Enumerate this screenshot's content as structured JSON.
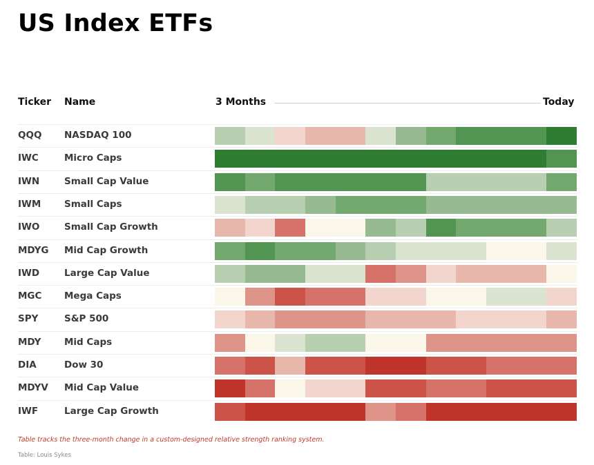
{
  "title": "US Index ETFs",
  "header": {
    "ticker": "Ticker",
    "name": "Name",
    "start": "3 Months",
    "end": "Today"
  },
  "caption": "Table tracks the three-month change in a custom-designed relative strength ranking system.",
  "source": "Table: Louis Sykes",
  "palette": {
    "g5": "#2e7d32",
    "g4": "#529452",
    "g3": "#73a96f",
    "g2": "#97ba92",
    "g1": "#b8d0b1",
    "g0": "#dbe3d1",
    "n": "#faf6ea",
    "r0": "#f2d6cd",
    "r1": "#e8b7ac",
    "r2": "#df948a",
    "r3": "#d5736a",
    "r4": "#cb5347",
    "r5": "#c0352b"
  },
  "chart_data": {
    "type": "heatmap",
    "columns": 12,
    "rows": [
      {
        "ticker": "QQQ",
        "name": "NASDAQ 100",
        "cells": [
          "g1",
          "g0",
          "r0",
          "r1",
          "r1",
          "g0",
          "g2",
          "g3",
          "g4",
          "g4",
          "g4",
          "g5"
        ]
      },
      {
        "ticker": "IWC",
        "name": "Micro Caps",
        "cells": [
          "g5",
          "g5",
          "g5",
          "g5",
          "g5",
          "g5",
          "g5",
          "g5",
          "g5",
          "g5",
          "g5",
          "g4"
        ]
      },
      {
        "ticker": "IWN",
        "name": "Small Cap Value",
        "cells": [
          "g4",
          "g3",
          "g4",
          "g4",
          "g4",
          "g4",
          "g4",
          "g1",
          "g1",
          "g1",
          "g1",
          "g3"
        ]
      },
      {
        "ticker": "IWM",
        "name": "Small Caps",
        "cells": [
          "g0",
          "g1",
          "g1",
          "g2",
          "g3",
          "g3",
          "g3",
          "g2",
          "g2",
          "g2",
          "g2",
          "g2"
        ]
      },
      {
        "ticker": "IWO",
        "name": "Small Cap Growth",
        "cells": [
          "r1",
          "r0",
          "r3",
          "n",
          "n",
          "g2",
          "g1",
          "g4",
          "g3",
          "g3",
          "g3",
          "g1"
        ]
      },
      {
        "ticker": "MDYG",
        "name": "Mid Cap Growth",
        "cells": [
          "g3",
          "g4",
          "g3",
          "g3",
          "g2",
          "g1",
          "g0",
          "g0",
          "g0",
          "n",
          "n",
          "g0"
        ]
      },
      {
        "ticker": "IWD",
        "name": "Large Cap Value",
        "cells": [
          "g1",
          "g2",
          "g2",
          "g0",
          "g0",
          "r3",
          "r2",
          "r0",
          "r1",
          "r1",
          "r1",
          "n"
        ]
      },
      {
        "ticker": "MGC",
        "name": "Mega Caps",
        "cells": [
          "n",
          "r2",
          "r4",
          "r3",
          "r3",
          "r0",
          "r0",
          "n",
          "n",
          "g0",
          "g0",
          "r0"
        ]
      },
      {
        "ticker": "SPY",
        "name": "S&P 500",
        "cells": [
          "r0",
          "r1",
          "r2",
          "r2",
          "r2",
          "r1",
          "r1",
          "r1",
          "r0",
          "r0",
          "r0",
          "r1"
        ]
      },
      {
        "ticker": "MDY",
        "name": "Mid Caps",
        "cells": [
          "r2",
          "n",
          "g0",
          "g1",
          "g1",
          "n",
          "n",
          "r2",
          "r2",
          "r2",
          "r2",
          "r2"
        ]
      },
      {
        "ticker": "DIA",
        "name": "Dow 30",
        "cells": [
          "r3",
          "r4",
          "r1",
          "r4",
          "r4",
          "r5",
          "r5",
          "r4",
          "r4",
          "r3",
          "r3",
          "r3"
        ]
      },
      {
        "ticker": "MDYV",
        "name": "Mid Cap Value",
        "cells": [
          "r5",
          "r3",
          "n",
          "r0",
          "r0",
          "r4",
          "r4",
          "r3",
          "r3",
          "r4",
          "r4",
          "r4"
        ]
      },
      {
        "ticker": "IWF",
        "name": "Large Cap Growth",
        "cells": [
          "r4",
          "r5",
          "r5",
          "r5",
          "r5",
          "r2",
          "r3",
          "r5",
          "r5",
          "r5",
          "r5",
          "r5"
        ]
      }
    ]
  }
}
